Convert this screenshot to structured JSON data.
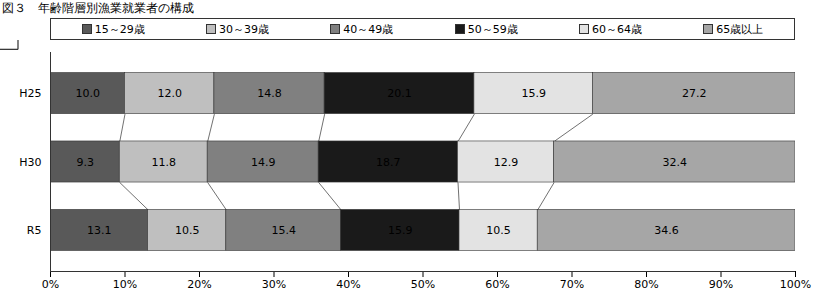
{
  "chart_data": {
    "type": "bar",
    "title": "図３　年齢階層別漁業就業者の構成",
    "orientation": "horizontal",
    "stacked": true,
    "data_labels": true,
    "legend": "top",
    "grid": false,
    "categories": [
      "H25",
      "H30",
      "R5"
    ],
    "xlim": [
      0,
      100
    ],
    "xticks": [
      {
        "value": 0,
        "label": "0%"
      },
      {
        "value": 10,
        "label": "10%"
      },
      {
        "value": 20,
        "label": "20%"
      },
      {
        "value": 30,
        "label": "30%"
      },
      {
        "value": 40,
        "label": "40%"
      },
      {
        "value": 50,
        "label": "50%"
      },
      {
        "value": 60,
        "label": "60%"
      },
      {
        "value": 70,
        "label": "70%"
      },
      {
        "value": 80,
        "label": "80%"
      },
      {
        "value": 90,
        "label": "90%"
      },
      {
        "value": 100,
        "label": "100%"
      }
    ],
    "series": [
      {
        "name": "15～29歳",
        "color": "#595959",
        "values": [
          10.0,
          9.3,
          13.1
        ],
        "value_labels": [
          "10.0",
          "9.3",
          "13.1"
        ]
      },
      {
        "name": "30～39歳",
        "color": "#bfbfbf",
        "values": [
          12.0,
          11.8,
          10.5
        ],
        "value_labels": [
          "12.0",
          "11.8",
          "10.5"
        ]
      },
      {
        "name": "40～49歳",
        "color": "#808080",
        "values": [
          14.8,
          14.9,
          15.4
        ],
        "value_labels": [
          "14.8",
          "14.9",
          "15.4"
        ]
      },
      {
        "name": "50～59歳",
        "color": "#1a1a1a",
        "values": [
          20.1,
          18.7,
          15.9
        ],
        "value_labels": [
          "20.1",
          "18.7",
          "15.9"
        ]
      },
      {
        "name": "60～64歳",
        "color": "#e3e3e3",
        "values": [
          15.9,
          12.9,
          10.5
        ],
        "value_labels": [
          "15.9",
          "12.9",
          "10.5"
        ]
      },
      {
        "name": "65歳以上",
        "color": "#a6a6a6",
        "values": [
          27.2,
          32.4,
          34.6
        ],
        "value_labels": [
          "27.2",
          "32.4",
          "34.6"
        ]
      }
    ]
  }
}
